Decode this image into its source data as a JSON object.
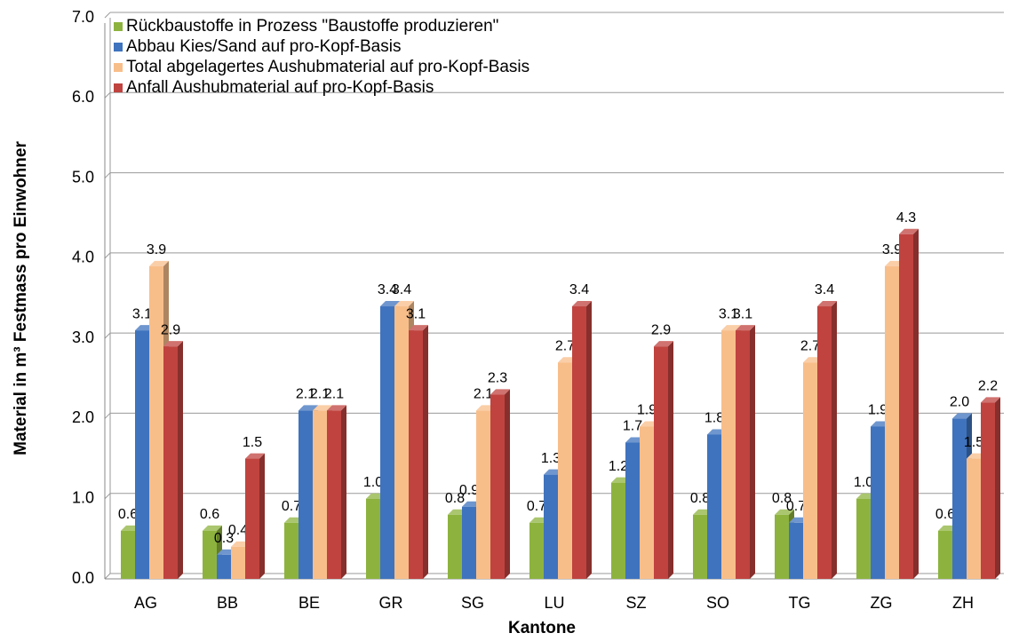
{
  "chart_data": {
    "type": "bar",
    "x_label": "Kantone",
    "y_label": "Material in m³ Festmass pro Einwohner",
    "categories": [
      "AG",
      "BB",
      "BE",
      "GR",
      "SG",
      "LU",
      "SZ",
      "SO",
      "TG",
      "ZG",
      "ZH"
    ],
    "series": [
      {
        "name": "Rückbaustoffe in Prozess \"Baustoffe produzieren\"",
        "color": "#8db33e",
        "values": [
          0.6,
          0.6,
          0.7,
          1.0,
          0.8,
          0.7,
          1.2,
          0.8,
          0.8,
          1.0,
          0.6
        ],
        "value_labels": [
          "0.6",
          "0.6",
          "0.7",
          "1.0",
          "0.8",
          "0.7",
          "1.2",
          "0.8",
          "0.8",
          "1.0",
          "0.6"
        ]
      },
      {
        "name": "Abbau Kies/Sand auf pro-Kopf-Basis",
        "color": "#3f73be",
        "values": [
          3.1,
          0.3,
          2.1,
          3.4,
          0.9,
          1.3,
          1.7,
          1.8,
          0.7,
          1.9,
          2.0
        ],
        "value_labels": [
          "3.1",
          "0.3",
          "2.1",
          "3.4",
          "0.9",
          "1.3",
          "1.7",
          "1.8",
          "0.7",
          "1.9",
          "2.0"
        ]
      },
      {
        "name": "Total abgelagertes Aushubmaterial auf pro-Kopf-Basis",
        "color": "#f8be8a",
        "values": [
          3.9,
          0.4,
          2.1,
          3.4,
          2.1,
          2.7,
          1.9,
          3.1,
          2.7,
          3.9,
          1.5
        ],
        "value_labels": [
          "3.9",
          "0.4",
          "2.1",
          "3.4",
          "2.1",
          "2.7",
          "1.9",
          "3.1",
          "2.7",
          "3.9",
          "1.5"
        ]
      },
      {
        "name": "Anfall Aushubmaterial auf pro-Kopf-Basis",
        "color": "#c0433f",
        "values": [
          2.9,
          1.5,
          2.1,
          3.1,
          2.3,
          3.4,
          2.9,
          3.1,
          3.4,
          4.3,
          2.2
        ],
        "value_labels": [
          "2.9",
          "1.5",
          "2.1",
          "3.1",
          "2.3",
          "3.4",
          "2.9",
          "3.1",
          "3.4",
          "4.3",
          "2.2"
        ]
      }
    ],
    "ylim": [
      0,
      7
    ],
    "yticks": [
      {
        "value": 0,
        "label": "0.0"
      },
      {
        "value": 1,
        "label": "1.0"
      },
      {
        "value": 2,
        "label": "2.0"
      },
      {
        "value": 3,
        "label": "3.0"
      },
      {
        "value": 4,
        "label": "4.0"
      },
      {
        "value": 5,
        "label": "5.0"
      },
      {
        "value": 6,
        "label": "6.0"
      },
      {
        "value": 7,
        "label": "7.0"
      }
    ],
    "grid": true,
    "legend": "upper left"
  }
}
